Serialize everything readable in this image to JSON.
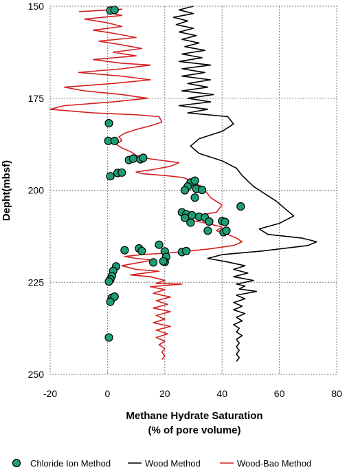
{
  "colors": {
    "chloride": "#1e9e78",
    "wood": "#000000",
    "woodbao": "#d32020",
    "grid": "#7f7f7f"
  },
  "chart_data": {
    "type": "line",
    "xlabel_line1": "Methane Hydrate Saturation",
    "xlabel_line2": "(% of pore volume)",
    "ylabel": "Depht(mbsf)",
    "xlim": [
      -20,
      80
    ],
    "ylim": [
      150,
      250
    ],
    "y_inverted": true,
    "grid": true,
    "legend_position": "bottom",
    "x_ticks": [
      -20,
      0,
      20,
      40,
      60,
      80
    ],
    "y_ticks": [
      150,
      175,
      200,
      225,
      250
    ],
    "series": [
      {
        "name": "Chloride Ion Method",
        "type": "scatter",
        "points": [
          [
            1,
            151.2
          ],
          [
            2.5,
            151
          ],
          [
            0.5,
            181.8
          ],
          [
            0.3,
            186.6
          ],
          [
            2.5,
            186.6
          ],
          [
            7.5,
            191.8
          ],
          [
            9,
            191.4
          ],
          [
            11.5,
            191.6
          ],
          [
            12.5,
            191.2
          ],
          [
            3.5,
            195.3
          ],
          [
            5,
            195.2
          ],
          [
            1,
            196.2
          ],
          [
            29,
            197.9
          ],
          [
            30.5,
            197.4
          ],
          [
            28,
            199
          ],
          [
            27,
            200
          ],
          [
            31,
            199.6
          ],
          [
            33,
            199.9
          ],
          [
            30.5,
            202
          ],
          [
            46.5,
            204.4
          ],
          [
            26,
            206
          ],
          [
            27.5,
            206.5
          ],
          [
            29.5,
            206.8
          ],
          [
            27,
            207.5
          ],
          [
            32,
            207.2
          ],
          [
            34,
            207.4
          ],
          [
            35.5,
            208.5
          ],
          [
            40,
            208.4
          ],
          [
            41,
            208.6
          ],
          [
            29,
            208.8
          ],
          [
            35,
            211
          ],
          [
            40.5,
            211.4
          ],
          [
            41.5,
            211
          ],
          [
            6,
            216.3
          ],
          [
            11,
            215.8
          ],
          [
            12,
            216.5
          ],
          [
            18,
            214.8
          ],
          [
            20,
            216.6
          ],
          [
            26,
            216.8
          ],
          [
            27.5,
            216.5
          ],
          [
            20.5,
            218.1
          ],
          [
            16,
            219.6
          ],
          [
            20,
            219.5
          ],
          [
            19.5,
            219.3
          ],
          [
            3,
            220.7
          ],
          [
            2,
            221.9
          ],
          [
            1.5,
            223.3
          ],
          [
            1,
            224.2
          ],
          [
            0.5,
            224.8
          ],
          [
            1.5,
            229.2
          ],
          [
            2.5,
            228.9
          ],
          [
            1,
            230.3
          ],
          [
            0.5,
            240
          ]
        ]
      },
      {
        "name": "Wood Method",
        "type": "line",
        "points": [
          [
            30,
            150
          ],
          [
            25,
            151
          ],
          [
            30,
            152
          ],
          [
            23,
            153
          ],
          [
            28,
            154
          ],
          [
            24,
            155
          ],
          [
            30,
            156
          ],
          [
            25,
            157
          ],
          [
            31,
            158
          ],
          [
            26,
            159
          ],
          [
            32,
            160
          ],
          [
            27,
            161
          ],
          [
            34,
            162
          ],
          [
            26,
            163
          ],
          [
            33,
            164
          ],
          [
            25,
            165
          ],
          [
            36,
            166
          ],
          [
            26,
            167
          ],
          [
            34,
            168
          ],
          [
            26,
            169
          ],
          [
            36,
            170
          ],
          [
            28,
            171
          ],
          [
            35,
            172
          ],
          [
            26,
            173
          ],
          [
            37,
            174
          ],
          [
            28,
            175
          ],
          [
            36,
            176
          ],
          [
            25,
            177
          ],
          [
            35,
            178
          ],
          [
            28,
            179
          ],
          [
            42,
            180
          ],
          [
            44,
            182
          ],
          [
            40,
            184
          ],
          [
            32,
            186
          ],
          [
            29,
            188
          ],
          [
            32,
            190
          ],
          [
            40,
            192
          ],
          [
            45,
            194
          ],
          [
            47,
            196
          ],
          [
            49,
            197.5
          ],
          [
            51,
            199
          ],
          [
            55,
            201
          ],
          [
            59,
            203
          ],
          [
            62,
            205
          ],
          [
            65,
            207
          ],
          [
            60,
            209
          ],
          [
            53,
            210.5
          ],
          [
            56,
            212
          ],
          [
            68,
            213
          ],
          [
            73,
            214
          ],
          [
            70,
            215
          ],
          [
            54,
            216.5
          ],
          [
            40,
            217.5
          ],
          [
            35,
            218.5
          ],
          [
            42,
            219.5
          ],
          [
            48,
            220.5
          ],
          [
            44,
            221.5
          ],
          [
            49,
            222.5
          ],
          [
            44,
            223.5
          ],
          [
            51,
            224.5
          ],
          [
            45,
            225.5
          ],
          [
            48,
            226
          ],
          [
            46,
            226.8
          ],
          [
            52,
            227.5
          ],
          [
            45,
            228.5
          ],
          [
            48,
            229.5
          ],
          [
            44,
            230.5
          ],
          [
            47,
            231.5
          ],
          [
            44,
            232.5
          ],
          [
            48,
            233.5
          ],
          [
            45,
            234.5
          ],
          [
            47,
            235.5
          ],
          [
            44,
            236.5
          ],
          [
            46,
            237.5
          ],
          [
            45,
            238.5
          ],
          [
            47,
            239.5
          ],
          [
            45,
            240.5
          ],
          [
            46,
            241.5
          ],
          [
            45,
            242.5
          ],
          [
            46,
            243.5
          ],
          [
            45,
            244.5
          ],
          [
            46,
            245.5
          ],
          [
            45,
            246.5
          ]
        ]
      },
      {
        "name": "Wood-Bao Method",
        "type": "line",
        "points": [
          [
            -10,
            151.5
          ],
          [
            5,
            150.8
          ],
          [
            0,
            151.7
          ],
          [
            5,
            152.5
          ],
          [
            -8,
            153.5
          ],
          [
            0,
            154.5
          ],
          [
            5,
            155.5
          ],
          [
            -5,
            156.5
          ],
          [
            3,
            157.5
          ],
          [
            10,
            158.5
          ],
          [
            -3,
            159.5
          ],
          [
            5,
            160.5
          ],
          [
            12,
            161.5
          ],
          [
            2,
            162.5
          ],
          [
            10,
            163.5
          ],
          [
            -5,
            164.5
          ],
          [
            5,
            165.5
          ],
          [
            15,
            166
          ],
          [
            5,
            167
          ],
          [
            -10,
            168
          ],
          [
            5,
            169
          ],
          [
            15,
            170
          ],
          [
            2,
            171
          ],
          [
            -15,
            172
          ],
          [
            -8,
            173
          ],
          [
            5,
            174
          ],
          [
            14,
            175
          ],
          [
            2,
            176
          ],
          [
            -15,
            177
          ],
          [
            -20,
            178
          ],
          [
            -5,
            179
          ],
          [
            10,
            179.5
          ],
          [
            18,
            180
          ],
          [
            19,
            181.5
          ],
          [
            15,
            182.5
          ],
          [
            10,
            183.5
          ],
          [
            6,
            184.5
          ],
          [
            4,
            185.5
          ],
          [
            5,
            186.5
          ],
          [
            3,
            187.5
          ],
          [
            5,
            188.5
          ],
          [
            8,
            189.5
          ],
          [
            10,
            190.5
          ],
          [
            12,
            191
          ],
          [
            15,
            191.5
          ],
          [
            20,
            192
          ],
          [
            25,
            192.5
          ],
          [
            22,
            193.5
          ],
          [
            15,
            194.5
          ],
          [
            10,
            195
          ],
          [
            12,
            195.5
          ],
          [
            20,
            196
          ],
          [
            26,
            196.5
          ],
          [
            28,
            197
          ],
          [
            30,
            198
          ],
          [
            33,
            199
          ],
          [
            34,
            200
          ],
          [
            36,
            202
          ],
          [
            40,
            204
          ],
          [
            38,
            206
          ],
          [
            30,
            207
          ],
          [
            28,
            208
          ],
          [
            35,
            209
          ],
          [
            40,
            210
          ],
          [
            38,
            211
          ],
          [
            42,
            212
          ],
          [
            45,
            213
          ],
          [
            47,
            214
          ],
          [
            44,
            215
          ],
          [
            35,
            216
          ],
          [
            22,
            217
          ],
          [
            12,
            217.5
          ],
          [
            6,
            218
          ],
          [
            10,
            218.5
          ],
          [
            16,
            219
          ],
          [
            12,
            219.5
          ],
          [
            5,
            220.5
          ],
          [
            10,
            221.5
          ],
          [
            18,
            222
          ],
          [
            8,
            223
          ],
          [
            15,
            223.5
          ],
          [
            20,
            224.5
          ],
          [
            17,
            225.3
          ],
          [
            26,
            225.5
          ],
          [
            15,
            226.2
          ],
          [
            20,
            227
          ],
          [
            16,
            228
          ],
          [
            22,
            229
          ],
          [
            17,
            230
          ],
          [
            21,
            231
          ],
          [
            16,
            232
          ],
          [
            22,
            233
          ],
          [
            17,
            234
          ],
          [
            20,
            235
          ],
          [
            16,
            236
          ],
          [
            22,
            237
          ],
          [
            17,
            238
          ],
          [
            21,
            239
          ],
          [
            17,
            240
          ],
          [
            20,
            241
          ],
          [
            18,
            242
          ],
          [
            20,
            243
          ],
          [
            19,
            244
          ],
          [
            20,
            245
          ],
          [
            19,
            246
          ]
        ]
      }
    ]
  }
}
